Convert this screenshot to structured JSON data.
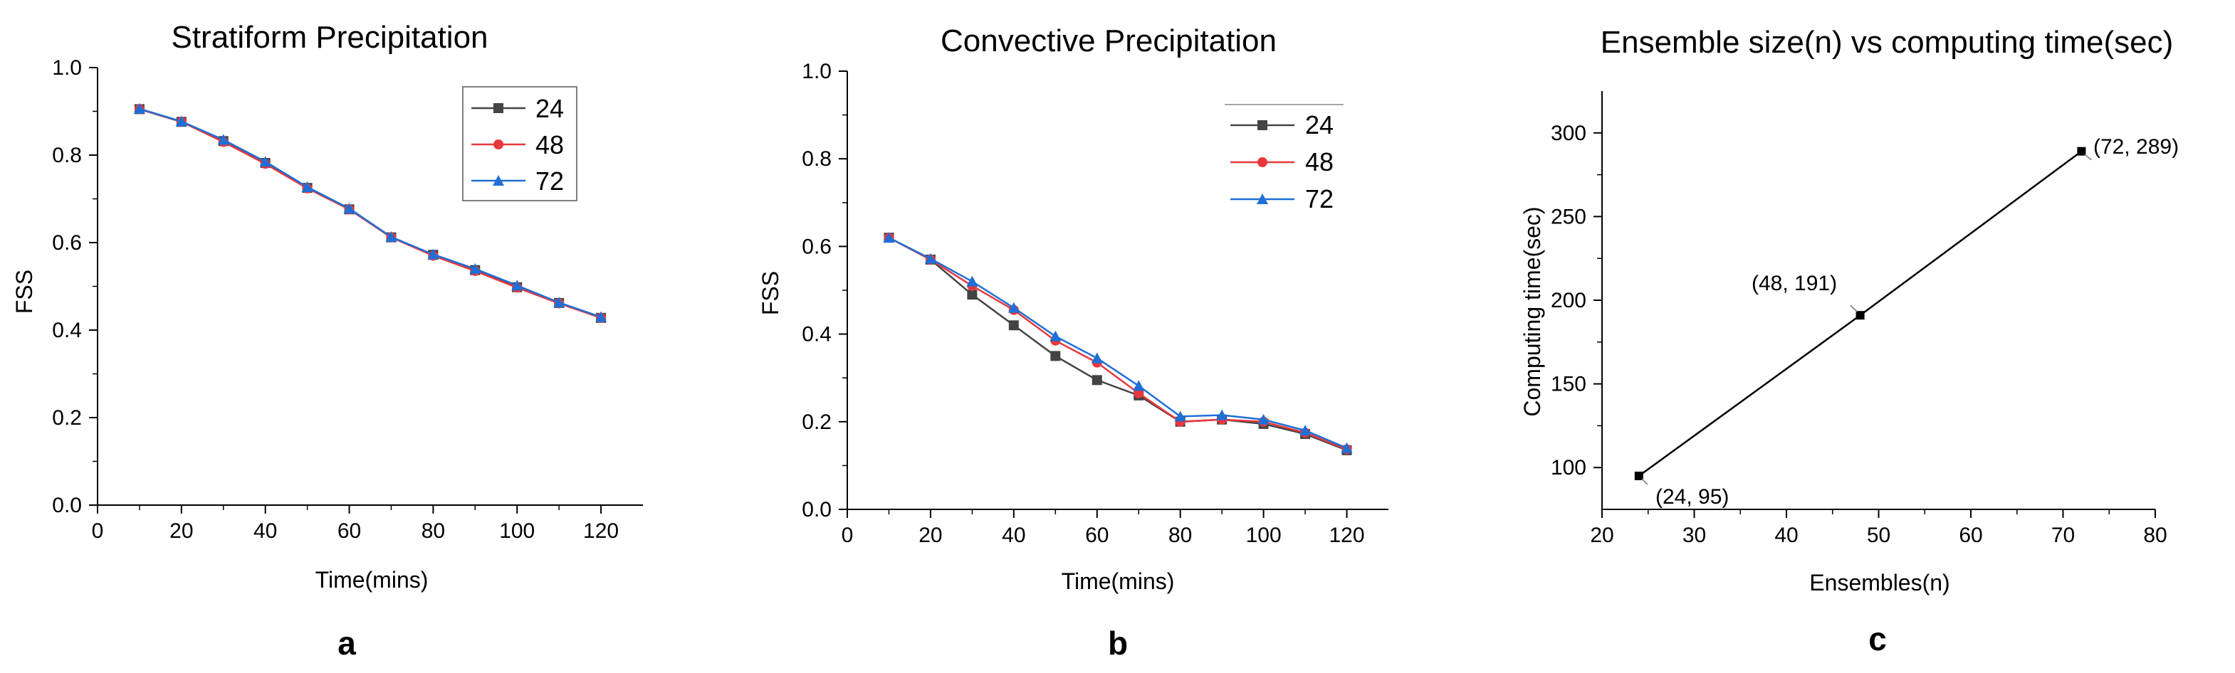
{
  "colors": {
    "s24": "#444444",
    "s48": "#e8383d",
    "s72": "#1f6fd6",
    "c": "#000000",
    "axis": "#000000"
  },
  "chart_data": [
    {
      "type": "line",
      "panel_label": "a",
      "title": "Stratiform Precipitation",
      "xlabel": "Time(mins)",
      "ylabel": "FSS",
      "xlim": [
        0,
        130
      ],
      "ylim": [
        0,
        1.0
      ],
      "xticks": [
        0,
        20,
        40,
        60,
        80,
        100,
        120
      ],
      "xtick_labels": [
        "0",
        "20",
        "40",
        "60",
        "80",
        "100",
        "120"
      ],
      "yticks": [
        0,
        0.2,
        0.4,
        0.6,
        0.8,
        1.0
      ],
      "ytick_labels": [
        "0.0",
        "0.2",
        "0.4",
        "0.6",
        "0.8",
        "1.0"
      ],
      "x": [
        10,
        20,
        30,
        40,
        50,
        60,
        70,
        80,
        90,
        100,
        110,
        120
      ],
      "legend_position": "top-right",
      "series": [
        {
          "name": "24",
          "marker": "square",
          "values": [
            0.905,
            0.876,
            0.832,
            0.782,
            0.725,
            0.676,
            0.612,
            0.572,
            0.537,
            0.498,
            0.462,
            0.428
          ]
        },
        {
          "name": "48",
          "marker": "circle",
          "values": [
            0.905,
            0.876,
            0.83,
            0.78,
            0.724,
            0.676,
            0.612,
            0.57,
            0.535,
            0.497,
            0.461,
            0.428
          ]
        },
        {
          "name": "72",
          "marker": "triangle",
          "values": [
            0.906,
            0.877,
            0.835,
            0.785,
            0.727,
            0.678,
            0.613,
            0.573,
            0.54,
            0.502,
            0.463,
            0.43
          ]
        }
      ]
    },
    {
      "type": "line",
      "panel_label": "b",
      "title": "Convective Precipitation",
      "xlabel": "Time(mins)",
      "ylabel": "FSS",
      "xlim": [
        0,
        130
      ],
      "ylim": [
        0,
        1.0
      ],
      "xticks": [
        0,
        20,
        40,
        60,
        80,
        100,
        120
      ],
      "xtick_labels": [
        "0",
        "20",
        "40",
        "60",
        "80",
        "100",
        "120"
      ],
      "yticks": [
        0,
        0.2,
        0.4,
        0.6,
        0.8,
        1.0
      ],
      "ytick_labels": [
        "0.0",
        "0.2",
        "0.4",
        "0.6",
        "0.8",
        "1.0"
      ],
      "x": [
        10,
        20,
        30,
        40,
        50,
        60,
        70,
        80,
        90,
        100,
        110,
        120
      ],
      "legend_position": "top-right",
      "series": [
        {
          "name": "24",
          "marker": "square",
          "values": [
            0.62,
            0.57,
            0.49,
            0.42,
            0.35,
            0.295,
            0.26,
            0.2,
            0.205,
            0.195,
            0.172,
            0.135
          ]
        },
        {
          "name": "48",
          "marker": "circle",
          "values": [
            0.62,
            0.57,
            0.51,
            0.455,
            0.385,
            0.335,
            0.265,
            0.2,
            0.205,
            0.2,
            0.175,
            0.137
          ]
        },
        {
          "name": "72",
          "marker": "triangle",
          "values": [
            0.62,
            0.572,
            0.52,
            0.46,
            0.395,
            0.345,
            0.282,
            0.212,
            0.215,
            0.205,
            0.18,
            0.14
          ]
        }
      ]
    },
    {
      "type": "line",
      "panel_label": "c",
      "title": "Ensemble size(n) vs computing time(sec)",
      "xlabel": "Ensembles(n)",
      "ylabel": "Computing time(sec)",
      "xlim": [
        20,
        80
      ],
      "ylim": [
        75,
        325
      ],
      "xticks": [
        20,
        30,
        40,
        50,
        60,
        70,
        80
      ],
      "xtick_labels": [
        "20",
        "30",
        "40",
        "50",
        "60",
        "70",
        "80"
      ],
      "yticks": [
        100,
        150,
        200,
        250,
        300
      ],
      "ytick_labels": [
        "100",
        "150",
        "200",
        "250",
        "300"
      ],
      "x": [
        24,
        48,
        72
      ],
      "series": [
        {
          "name": "Computing time",
          "marker": "square",
          "values": [
            95,
            191,
            289
          ]
        }
      ],
      "annotations": [
        "(24, 95)",
        "(48, 191)",
        "(72, 289)"
      ]
    }
  ]
}
